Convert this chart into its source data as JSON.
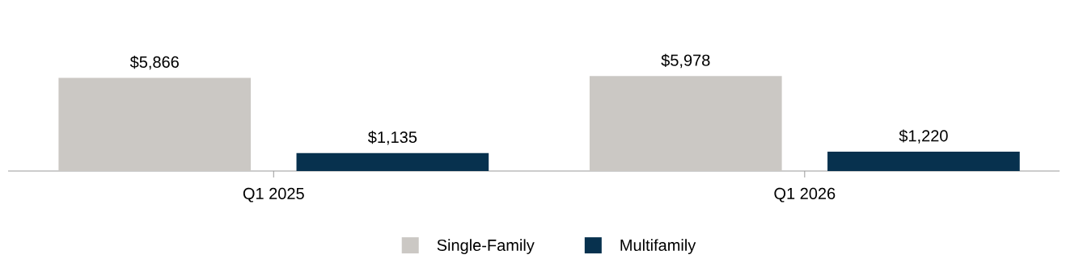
{
  "chart_data": {
    "type": "bar",
    "categories": [
      "Q1 2025",
      "Q1 2026"
    ],
    "series": [
      {
        "name": "Single-Family",
        "color": "#cbc8c4",
        "values": [
          5866,
          5978
        ],
        "value_labels": [
          "$5,866",
          "$5,978"
        ]
      },
      {
        "name": "Multifamily",
        "color": "#07314e",
        "values": [
          1135,
          1220
        ],
        "value_labels": [
          "$1,135",
          "$1,220"
        ]
      }
    ],
    "legend": "bottom",
    "grid": false
  }
}
